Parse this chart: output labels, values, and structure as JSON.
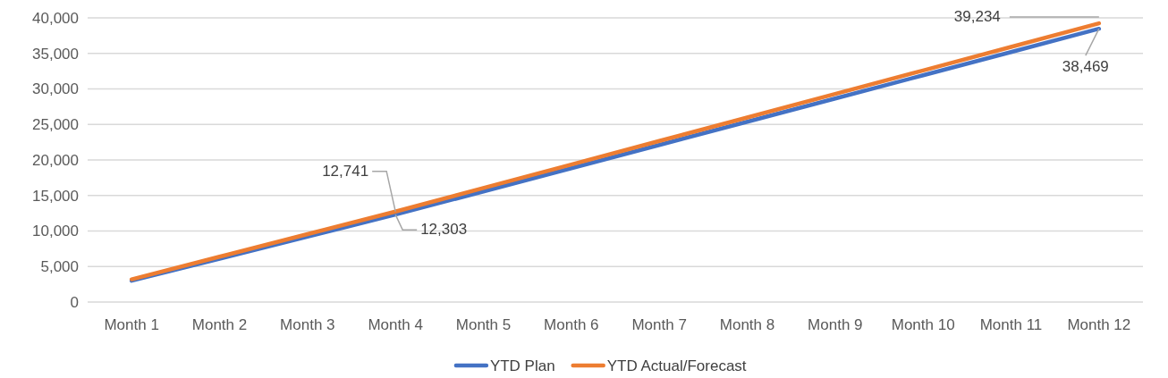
{
  "chart_data": {
    "type": "line",
    "categories": [
      "Month 1",
      "Month 2",
      "Month 3",
      "Month 4",
      "Month 5",
      "Month 6",
      "Month 7",
      "Month 8",
      "Month 9",
      "Month 10",
      "Month 11",
      "Month 12"
    ],
    "series": [
      {
        "name": "YTD Plan",
        "color": "#4472c4",
        "values": [
          3000,
          6100,
          9200,
          12303,
          15570,
          18840,
          22110,
          25380,
          28650,
          31920,
          35190,
          38469
        ],
        "value_labels": [
          null,
          null,
          null,
          "12,303",
          null,
          null,
          null,
          null,
          null,
          null,
          null,
          "38,469"
        ]
      },
      {
        "name": "YTD Actual/Forecast",
        "color": "#ed7d31",
        "values": [
          3200,
          6380,
          9560,
          12741,
          16050,
          19360,
          22670,
          25980,
          29290,
          32600,
          35910,
          39234
        ],
        "value_labels": [
          null,
          null,
          null,
          "12,741",
          null,
          null,
          null,
          null,
          null,
          null,
          null,
          "39,234"
        ]
      }
    ],
    "ylim": [
      0,
      40000
    ],
    "yticks": [
      {
        "value": 0,
        "label": "0"
      },
      {
        "value": 5000,
        "label": "5,000"
      },
      {
        "value": 10000,
        "label": "10,000"
      },
      {
        "value": 15000,
        "label": "15,000"
      },
      {
        "value": 20000,
        "label": "20,000"
      },
      {
        "value": 25000,
        "label": "25,000"
      },
      {
        "value": 30000,
        "label": "30,000"
      },
      {
        "value": 35000,
        "label": "35,000"
      },
      {
        "value": 40000,
        "label": "40,000"
      }
    ],
    "grid": "y",
    "legend": "bottom",
    "marker": "none",
    "line_style": "solid"
  }
}
